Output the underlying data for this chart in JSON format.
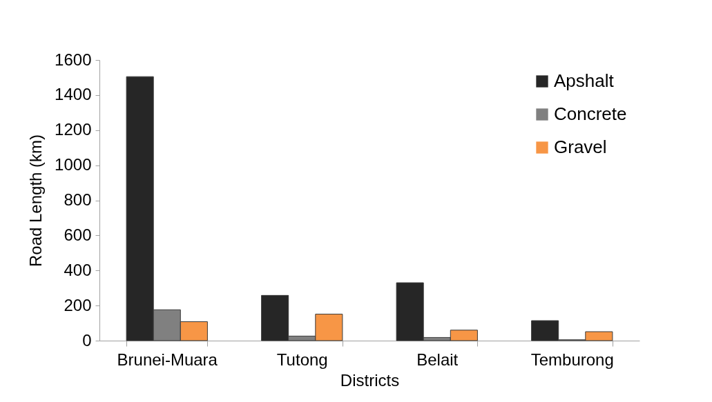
{
  "chart_data": {
    "type": "bar",
    "xlabel": "Districts",
    "ylabel": "Road Length (km)",
    "categories": [
      "Brunei-Muara",
      "Tutong",
      "Belait",
      "Temburong"
    ],
    "series": [
      {
        "name": "Apshalt",
        "color": "#262626",
        "values": [
          1505,
          258,
          330,
          114
        ]
      },
      {
        "name": "Concrete",
        "color": "#808080",
        "values": [
          176,
          26,
          18,
          5
        ]
      },
      {
        "name": "Gravel",
        "color": "#f79646",
        "values": [
          108,
          151,
          60,
          51
        ]
      }
    ],
    "ylim": [
      0,
      1600
    ],
    "yticks": [
      0,
      200,
      400,
      600,
      800,
      1000,
      1200,
      1400,
      1600
    ],
    "grid": false,
    "legend": "top right"
  }
}
